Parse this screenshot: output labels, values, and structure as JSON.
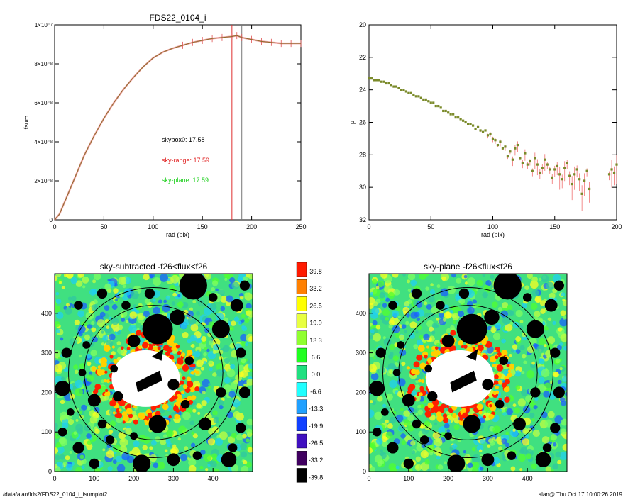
{
  "footer": {
    "path": "/data/alan/fds2/FDS22_0104_i_fsumplot2",
    "stamp": "alan@  Thu Oct 17 10:00:26 2019"
  },
  "chart_data": [
    {
      "type": "line",
      "title": "FDS22_0104_i",
      "xlabel": "rad (pix)",
      "ylabel": "fsum",
      "xlim": [
        0,
        250
      ],
      "ylim": [
        0,
        1e-07
      ],
      "xticks": [
        "0",
        "50",
        "100",
        "150",
        "200",
        "250"
      ],
      "yticks": [
        "0",
        "2×10⁻⁸",
        "4×10⁻⁸",
        "6×10⁻⁸",
        "8×10⁻⁸",
        "1×10⁻⁷"
      ],
      "vlines": [
        {
          "x": 180,
          "color": "#e03030"
        },
        {
          "x": 190,
          "color": "#777777"
        }
      ],
      "annotations": [
        {
          "text": "skybox0: 17.58",
          "color": "#000000"
        },
        {
          "text": "sky-range: 17.59",
          "color": "#e02020"
        },
        {
          "text": "sky-plane: 17.59",
          "color": "#20d020"
        }
      ],
      "series": [
        {
          "color": "#8b6a2a",
          "x": [
            0,
            5,
            10,
            20,
            30,
            40,
            50,
            60,
            70,
            80,
            90,
            100,
            110,
            120,
            130,
            140,
            150,
            160,
            170,
            180,
            185,
            190,
            200,
            210,
            220,
            230,
            240,
            250
          ],
          "y": [
            0,
            3e-09,
            9e-09,
            2.1e-08,
            3.3e-08,
            4.3e-08,
            5.2e-08,
            6e-08,
            6.7e-08,
            7.3e-08,
            7.85e-08,
            8.3e-08,
            8.6e-08,
            8.8e-08,
            8.95e-08,
            9.1e-08,
            9.2e-08,
            9.3e-08,
            9.35e-08,
            9.4e-08,
            9.45e-08,
            9.35e-08,
            9.25e-08,
            9.15e-08,
            9.1e-08,
            9.05e-08,
            9.05e-08,
            9.05e-08
          ]
        }
      ]
    },
    {
      "type": "scatter",
      "title": "",
      "xlabel": "rad (pix)",
      "ylabel": "μ",
      "xlim": [
        0,
        200
      ],
      "ylim": [
        32,
        20
      ],
      "xticks": [
        "0",
        "50",
        "100",
        "150",
        "200"
      ],
      "yticks": [
        "20",
        "22",
        "24",
        "26",
        "28",
        "30",
        "32"
      ],
      "series": [
        {
          "color": "#7a8a2a",
          "x": [
            0,
            2,
            4,
            6,
            8,
            10,
            12,
            14,
            16,
            18,
            20,
            22,
            24,
            26,
            28,
            30,
            32,
            34,
            36,
            38,
            40,
            42,
            44,
            46,
            48,
            50,
            52,
            54,
            56,
            58,
            60,
            62,
            64,
            66,
            68,
            70,
            72,
            74,
            76,
            78,
            80,
            82,
            84,
            86,
            88,
            90,
            92,
            94,
            96,
            98,
            100,
            102,
            104,
            106,
            108,
            110,
            112,
            114,
            116,
            118,
            120,
            122,
            124,
            126,
            128,
            130,
            132,
            134,
            136,
            138,
            140,
            142,
            144,
            146,
            148,
            150,
            152,
            154,
            156,
            158,
            160,
            162,
            164,
            166,
            168,
            170,
            172,
            174,
            176,
            178,
            194,
            196,
            198,
            200
          ],
          "y": [
            23.3,
            23.3,
            23.4,
            23.4,
            23.4,
            23.5,
            23.5,
            23.6,
            23.6,
            23.7,
            23.8,
            23.8,
            23.9,
            24.0,
            24.0,
            24.1,
            24.2,
            24.2,
            24.3,
            24.4,
            24.4,
            24.5,
            24.6,
            24.6,
            24.7,
            24.8,
            24.8,
            25.0,
            25.0,
            25.1,
            25.3,
            25.3,
            25.4,
            25.5,
            25.5,
            25.7,
            25.7,
            25.8,
            25.9,
            26.0,
            26.1,
            26.1,
            26.2,
            26.4,
            26.3,
            26.5,
            26.6,
            26.5,
            26.8,
            26.7,
            27.0,
            27.1,
            27.4,
            27.2,
            27.6,
            27.5,
            28.1,
            27.8,
            28.3,
            27.6,
            27.4,
            28.2,
            28.5,
            27.9,
            28.6,
            28.4,
            29.0,
            28.2,
            28.6,
            29.1,
            28.8,
            28.3,
            28.6,
            28.9,
            29.4,
            28.9,
            28.7,
            29.2,
            29.5,
            28.8,
            28.5,
            29.3,
            29.8,
            29.2,
            28.9,
            29.5,
            30.4,
            29.6,
            29.0,
            30.1,
            29.2,
            28.9,
            29.1,
            28.6
          ]
        }
      ]
    },
    {
      "type": "heatmap",
      "title": "sky-subtracted -f26<flux<f26",
      "xlim": [
        0,
        500
      ],
      "ylim": [
        0,
        500
      ],
      "xticks": [
        "0",
        "100",
        "200",
        "300",
        "400"
      ],
      "yticks": [
        "0",
        "100",
        "200",
        "300",
        "400"
      ],
      "ellipses": [
        {
          "cx": 250,
          "cy": 250,
          "rx": 215,
          "ry": 215
        },
        {
          "cx": 250,
          "cy": 250,
          "rx": 175,
          "ry": 170
        }
      ]
    },
    {
      "type": "heatmap",
      "title": "sky-plane -f26<flux<f26",
      "xlim": [
        0,
        500
      ],
      "ylim": [
        0,
        500
      ],
      "xticks": [
        "0",
        "100",
        "200",
        "300",
        "400"
      ],
      "yticks": [
        "0",
        "100",
        "200",
        "300",
        "400"
      ],
      "ellipses": [
        {
          "cx": 250,
          "cy": 250,
          "rx": 215,
          "ry": 215
        },
        {
          "cx": 250,
          "cy": 250,
          "rx": 175,
          "ry": 170
        }
      ]
    },
    {
      "type": "colorbar",
      "levels": [
        {
          "label": "39.8",
          "color": "#ff1a00"
        },
        {
          "label": "33.2",
          "color": "#ff8000"
        },
        {
          "label": "26.5",
          "color": "#ffff00"
        },
        {
          "label": "19.9",
          "color": "#e8ff40"
        },
        {
          "label": "13.3",
          "color": "#90ff30"
        },
        {
          "label": "6.6",
          "color": "#20ff20"
        },
        {
          "label": "0.0",
          "color": "#20e080"
        },
        {
          "label": "-6.6",
          "color": "#20ffff"
        },
        {
          "label": "-13.3",
          "color": "#20a0ff"
        },
        {
          "label": "-19.9",
          "color": "#1040ff"
        },
        {
          "label": "-26.5",
          "color": "#4010c0"
        },
        {
          "label": "-33.2",
          "color": "#400060"
        },
        {
          "label": "-39.8",
          "color": "#000000"
        }
      ]
    }
  ]
}
